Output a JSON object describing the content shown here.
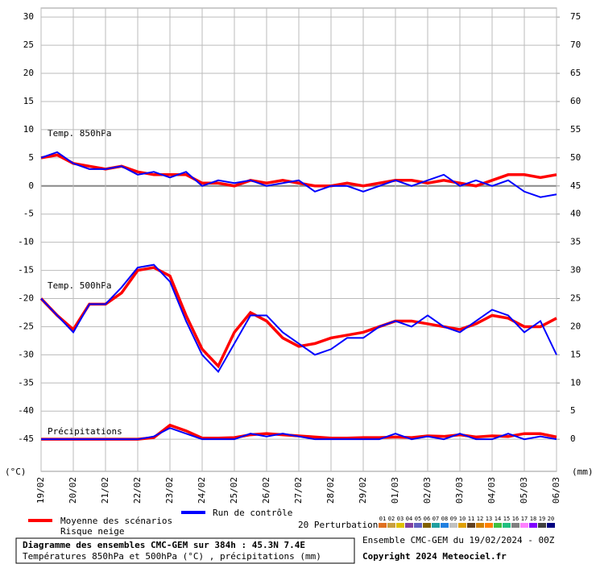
{
  "chart_data": {
    "type": "line",
    "ylabel": "(°C)",
    "y2label": "(mm)",
    "annotations": [
      "Temp. 850hPa",
      "Temp. 500hPa",
      "Précipitations"
    ],
    "categories": [
      "19/02",
      null,
      "20/02",
      null,
      "21/02",
      null,
      "22/02",
      null,
      "23/02",
      null,
      "24/02",
      null,
      "25/02",
      null,
      "26/02",
      null,
      "27/02",
      null,
      "28/02",
      null,
      "29/02",
      null,
      "01/03",
      null,
      "02/03",
      null,
      "03/03",
      null,
      "04/03",
      null,
      "05/03",
      null,
      "06/03"
    ],
    "ylim": [
      -50.7,
      31.6
    ],
    "yticks": [
      30,
      25,
      20,
      15,
      10,
      5,
      0,
      -5,
      -10,
      -15,
      -20,
      -25,
      -30,
      -35,
      -40,
      -45
    ],
    "y2lim": [
      -5.7,
      76.6
    ],
    "y2ticks": [
      75,
      70,
      65,
      60,
      55,
      50,
      45,
      40,
      35,
      30,
      25,
      20,
      15,
      10,
      5,
      0
    ],
    "grid": true,
    "series": [
      {
        "name": "Moyenne des scénarios",
        "color": "#ff0000",
        "values": [
          5,
          5.5,
          4,
          3.5,
          3,
          3.5,
          2.5,
          2,
          2,
          2,
          0.5,
          0.5,
          0,
          1,
          0.5,
          1,
          0.5,
          0,
          0,
          0.5,
          0,
          0.5,
          1,
          1,
          0.5,
          1,
          0.5,
          0,
          1,
          2,
          2,
          1.5,
          2
        ]
      },
      {
        "name": "Run de contrôle",
        "color": "#0000ff",
        "values": [
          5,
          6,
          4,
          3,
          3,
          3.5,
          2,
          2.5,
          1.5,
          2.5,
          0,
          1,
          0.5,
          1,
          0,
          0.5,
          1,
          -1,
          0,
          0,
          -1,
          0,
          1,
          0,
          1,
          2,
          0,
          1,
          0,
          1,
          -1,
          -2,
          -1.5
        ]
      },
      {
        "color": "#ff0000",
        "values": [
          -20,
          -23,
          -25.5,
          -21,
          -21,
          -19,
          -15,
          -14.5,
          -16,
          -23,
          -29,
          -32,
          -26,
          -22.5,
          -24,
          -27,
          -28.5,
          -28,
          -27,
          -26.5,
          -26,
          -25,
          -24,
          -24,
          -24.5,
          -25,
          -25.5,
          -24.5,
          -23,
          -23.5,
          -25,
          -25,
          -23.5
        ]
      },
      {
        "color": "#0000ff",
        "values": [
          -20,
          -23,
          -26,
          -21,
          -21,
          -18,
          -14.5,
          -14,
          -17,
          -24,
          -30,
          -33,
          -28,
          -23,
          -23,
          -26,
          -28,
          -30,
          -29,
          -27,
          -27,
          -25,
          -24,
          -25,
          -23,
          -25,
          -26,
          -24,
          -22,
          -23,
          -26,
          -24,
          -30
        ]
      },
      {
        "color": "#ff0000",
        "axis": "y2",
        "values": [
          0,
          0,
          0,
          0,
          0,
          0,
          0,
          0.3,
          2.5,
          1.5,
          0.2,
          0.2,
          0.3,
          0.8,
          1,
          0.8,
          0.6,
          0.4,
          0.2,
          0.2,
          0.3,
          0.3,
          0.4,
          0.3,
          0.6,
          0.5,
          0.8,
          0.4,
          0.6,
          0.5,
          1,
          1,
          0.4
        ]
      },
      {
        "color": "#0000ff",
        "axis": "y2",
        "values": [
          0,
          0,
          0,
          0,
          0,
          0,
          0,
          0.5,
          2,
          1,
          0,
          0,
          0,
          1,
          0.5,
          1,
          0.5,
          0,
          0,
          0,
          0,
          0,
          1,
          0,
          0.5,
          0,
          1,
          0,
          0,
          1,
          0,
          0.5,
          0
        ]
      }
    ],
    "legend_extra": "Risque neige",
    "perturbations": {
      "label": "20 Perturbations",
      "names": [
        "01",
        "02",
        "03",
        "04",
        "05",
        "06",
        "07",
        "08",
        "09",
        "10",
        "11",
        "12",
        "13",
        "14",
        "15",
        "16",
        "17",
        "18",
        "19",
        "20"
      ],
      "colors": [
        "#e07020",
        "#c8a040",
        "#e0c000",
        "#8040a0",
        "#6060c0",
        "#806000",
        "#20a0a0",
        "#2080e0",
        "#c0c0c0",
        "#e0a000",
        "#604020",
        "#d08000",
        "#ff8000",
        "#40c040",
        "#20c080",
        "#808080",
        "#ff80ff",
        "#8000ff",
        "#404040",
        "#000080"
      ]
    },
    "footer": [
      "Diagramme des ensembles CMC-GEM sur 384h : 45.3N 7.4E",
      "Températures 850hPa et 500hPa (°C) , précipitations (mm)",
      "Ensemble CMC-GEM du 19/02/2024 - 00Z",
      "Copyright 2024 Meteociel.fr"
    ]
  }
}
